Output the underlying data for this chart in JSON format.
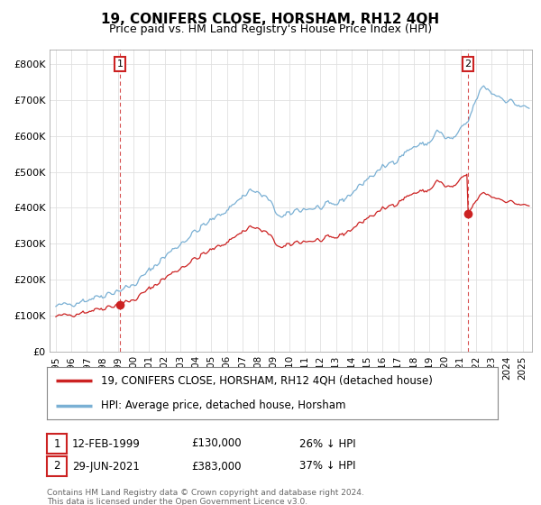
{
  "title": "19, CONIFERS CLOSE, HORSHAM, RH12 4QH",
  "subtitle": "Price paid vs. HM Land Registry's House Price Index (HPI)",
  "ylabel_ticks": [
    "£0",
    "£100K",
    "£200K",
    "£300K",
    "£400K",
    "£500K",
    "£600K",
    "£700K",
    "£800K"
  ],
  "ytick_values": [
    0,
    100000,
    200000,
    300000,
    400000,
    500000,
    600000,
    700000,
    800000
  ],
  "ylim": [
    0,
    840000
  ],
  "line1_color": "#cc2222",
  "line2_color": "#7ab0d4",
  "marker1_date": 1999.12,
  "marker1_value": 130000,
  "marker2_date": 2021.49,
  "marker2_value": 383000,
  "legend_line1": "19, CONIFERS CLOSE, HORSHAM, RH12 4QH (detached house)",
  "legend_line2": "HPI: Average price, detached house, Horsham",
  "table_row1": [
    "1",
    "12-FEB-1999",
    "£130,000",
    "26% ↓ HPI"
  ],
  "table_row2": [
    "2",
    "29-JUN-2021",
    "£383,000",
    "37% ↓ HPI"
  ],
  "footnote": "Contains HM Land Registry data © Crown copyright and database right 2024.\nThis data is licensed under the Open Government Licence v3.0.",
  "background_color": "#ffffff",
  "grid_color": "#e0e0e0",
  "title_fontsize": 11,
  "subtitle_fontsize": 9
}
